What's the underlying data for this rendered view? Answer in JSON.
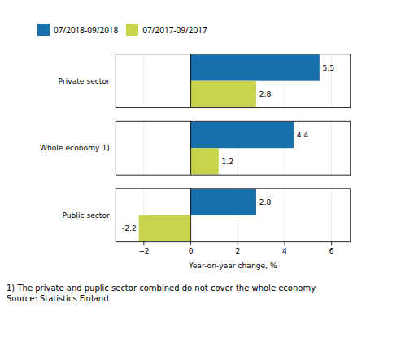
{
  "chart_data": {
    "type": "bar",
    "orientation": "horizontal",
    "categories": [
      "Public sector",
      "Whole economy 1)",
      "Private sector"
    ],
    "series": [
      {
        "name": "07/2018-09/2018",
        "color": "#1a6fad",
        "values": [
          2.8,
          4.4,
          5.5
        ]
      },
      {
        "name": "07/2017-09/2017",
        "color": "#c8d44e",
        "values": [
          -2.2,
          1.2,
          2.8
        ]
      }
    ],
    "xlabel": "Year-on-year change, %",
    "xlim": [
      -3.2,
      6.8
    ],
    "xticks": [
      -2,
      0,
      2,
      4,
      6
    ],
    "grid": true,
    "legend": "upper left",
    "data_labels": true,
    "annotations": [
      "1) The private and puplic sector combined do not cover the whole economy",
      "Source: Statistics Finland"
    ]
  }
}
